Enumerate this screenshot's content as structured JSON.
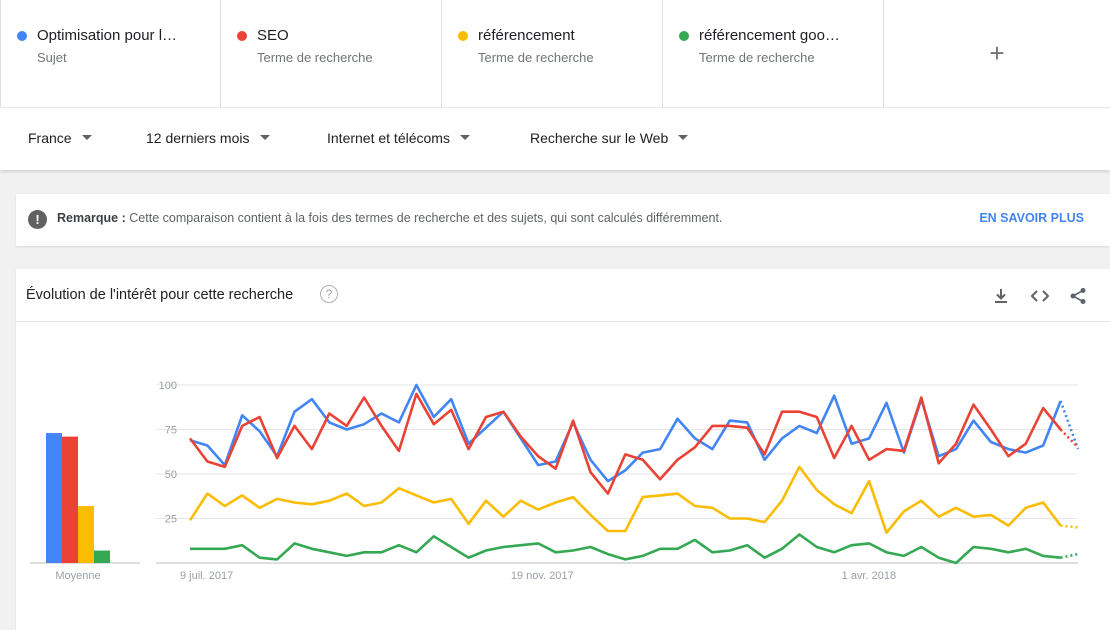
{
  "terms": [
    {
      "name": "Optimisation pour l…",
      "kind": "Sujet",
      "color": "#4285f4"
    },
    {
      "name": "SEO",
      "kind": "Terme de recherche",
      "color": "#ea4335"
    },
    {
      "name": "référencement",
      "kind": "Terme de recherche",
      "color": "#fbbc04"
    },
    {
      "name": "référencement goo…",
      "kind": "Terme de recherche",
      "color": "#34a853"
    }
  ],
  "add_term": "+",
  "filters": {
    "region": "France",
    "period": "12 derniers mois",
    "category": "Internet et télécoms",
    "search_type": "Recherche sur le Web"
  },
  "note": {
    "label": "Remarque :",
    "text": "Cette comparaison contient à la fois des termes de recherche et des sujets, qui sont calculés différemment.",
    "link": "EN SAVOIR PLUS"
  },
  "card": {
    "title": "Évolution de l'intérêt pour cette recherche",
    "tools": [
      "download-icon",
      "embed-icon",
      "share-icon"
    ]
  },
  "chart_data": {
    "type": "line",
    "yticks": [
      25,
      50,
      75,
      100
    ],
    "ylim": [
      0,
      100
    ],
    "x_labels": [
      "9 juil. 2017",
      "19 nov. 2017",
      "1 avr. 2018"
    ],
    "x_label_weeks": [
      0,
      19,
      38
    ],
    "partial_last_point": true,
    "average": {
      "label": "Moyenne",
      "values": [
        73,
        71,
        32,
        7
      ]
    },
    "series": [
      {
        "color": "#4285f4",
        "values": [
          69,
          66,
          55,
          83,
          74,
          60,
          85,
          92,
          79,
          75,
          78,
          84,
          79,
          100,
          82,
          92,
          67,
          76,
          85,
          70,
          55,
          57,
          79,
          58,
          46,
          52,
          62,
          64,
          81,
          70,
          64,
          80,
          79,
          58,
          70,
          77,
          73,
          94,
          67,
          70,
          90,
          62,
          92,
          60,
          64,
          80,
          68,
          64,
          62,
          66,
          91,
          64
        ]
      },
      {
        "color": "#ea4335",
        "values": [
          70,
          57,
          54,
          77,
          82,
          59,
          77,
          64,
          84,
          77,
          93,
          77,
          63,
          95,
          78,
          86,
          64,
          82,
          85,
          71,
          60,
          53,
          80,
          51,
          39,
          61,
          58,
          47,
          58,
          65,
          77,
          77,
          76,
          61,
          85,
          85,
          82,
          59,
          77,
          58,
          64,
          63,
          93,
          56,
          67,
          89,
          75,
          60,
          67,
          87,
          75,
          65
        ]
      },
      {
        "color": "#fbbc04",
        "values": [
          24,
          39,
          32,
          38,
          31,
          36,
          34,
          33,
          35,
          39,
          32,
          34,
          42,
          38,
          34,
          36,
          22,
          35,
          26,
          35,
          30,
          34,
          37,
          27,
          18,
          18,
          37,
          38,
          39,
          32,
          31,
          25,
          25,
          23,
          35,
          54,
          41,
          33,
          28,
          46,
          17,
          29,
          35,
          26,
          31,
          26,
          27,
          21,
          31,
          34,
          21,
          20
        ]
      },
      {
        "color": "#34a853",
        "values": [
          8,
          8,
          8,
          10,
          3,
          2,
          11,
          8,
          6,
          4,
          6,
          6,
          10,
          6,
          15,
          9,
          3,
          7,
          9,
          10,
          11,
          6,
          7,
          9,
          5,
          2,
          4,
          8,
          8,
          13,
          6,
          7,
          10,
          3,
          8,
          16,
          9,
          6,
          10,
          11,
          6,
          4,
          9,
          3,
          0,
          9,
          8,
          6,
          8,
          4,
          3,
          5
        ]
      }
    ]
  }
}
